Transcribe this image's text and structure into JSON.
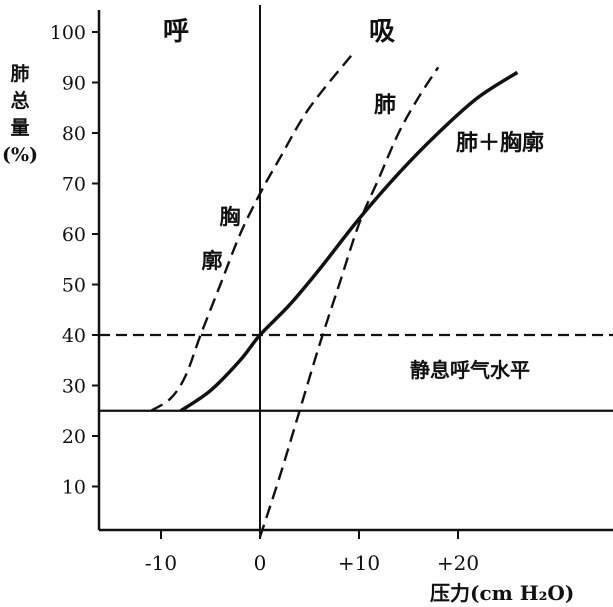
{
  "chart_data": {
    "type": "line",
    "ylabel": "肺总量(%)",
    "xlabel": "压力(cm H₂O)",
    "xlim": [
      -17,
      38
    ],
    "ylim": [
      0,
      105
    ],
    "x_ticks": [
      -10,
      0,
      10,
      20
    ],
    "x_tick_labels": [
      "-10",
      "0",
      "+10",
      "+20"
    ],
    "y_ticks": [
      10,
      20,
      30,
      40,
      50,
      60,
      70,
      80,
      90,
      100
    ],
    "y_tick_labels": [
      "10",
      "20",
      "30",
      "40",
      "50",
      "60",
      "70",
      "80",
      "90",
      "100"
    ],
    "region_labels": {
      "left": "呼",
      "right": "吸"
    },
    "reference_lines": [
      {
        "name": "静息呼气水平",
        "y": 25,
        "style": "solid"
      },
      {
        "name": "",
        "y": 40,
        "style": "dashed"
      }
    ],
    "series": [
      {
        "name": "胸廓",
        "style": "dashed",
        "label_chars": [
          "胸",
          "廓"
        ],
        "x": [
          -11,
          -9,
          -7.5,
          -6,
          -4,
          -2,
          0,
          2,
          5,
          9.5
        ],
        "y": [
          25,
          27.5,
          32,
          40,
          50,
          60,
          68,
          75,
          85,
          96
        ]
      },
      {
        "name": "肺",
        "style": "dashed",
        "x": [
          0,
          2,
          4,
          6,
          8,
          10,
          12,
          14,
          16,
          18
        ],
        "y": [
          0,
          12,
          25,
          38,
          50,
          62,
          71,
          80,
          87,
          93
        ]
      },
      {
        "name": "肺＋胸廓",
        "style": "solid",
        "x": [
          -8,
          -5,
          -2,
          0,
          3,
          6,
          10,
          14,
          18,
          22,
          26
        ],
        "y": [
          25,
          29,
          35,
          40,
          46,
          53,
          63,
          72,
          80,
          87,
          92
        ]
      }
    ]
  }
}
